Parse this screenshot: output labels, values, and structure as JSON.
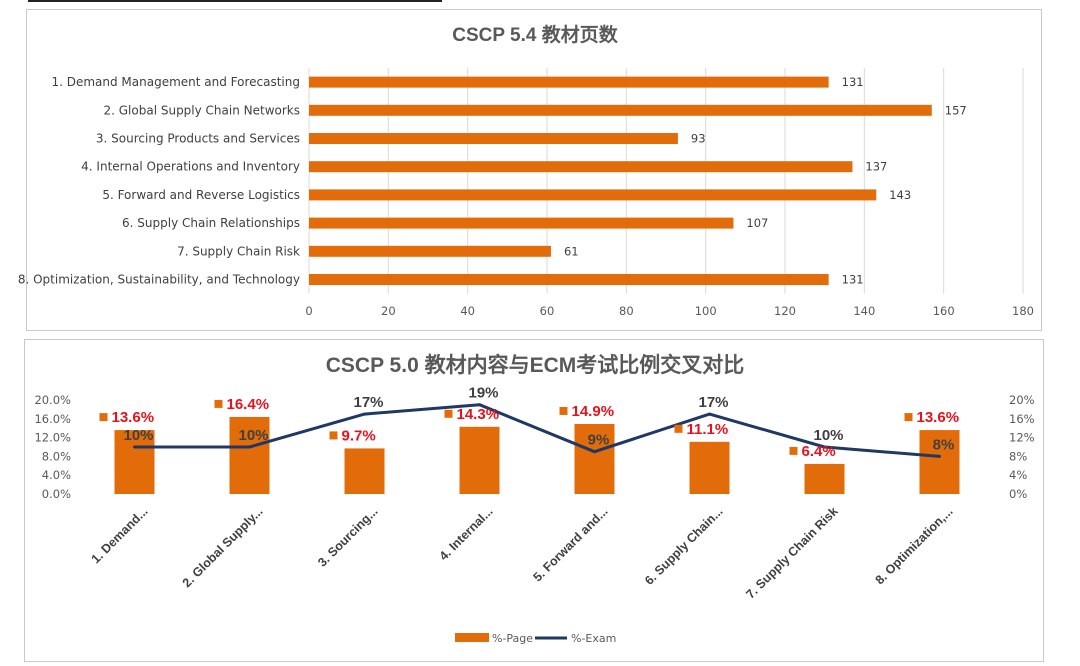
{
  "chart_data": [
    {
      "type": "bar",
      "orientation": "horizontal",
      "title": "CSCP 5.4 教材页数",
      "categories": [
        "1. Demand Management and Forecasting",
        "2. Global Supply Chain Networks",
        "3. Sourcing Products and Services",
        "4. Internal Operations and Inventory",
        "5. Forward and Reverse Logistics",
        "6. Supply Chain Relationships",
        "7. Supply Chain Risk",
        "8. Optimization, Sustainability, and Technology"
      ],
      "values": [
        131,
        157,
        93,
        137,
        143,
        107,
        61,
        131
      ],
      "data_labels": [
        "131",
        "157",
        "93",
        "137",
        "143",
        "107",
        "61",
        "131"
      ],
      "xlim": [
        0,
        180
      ],
      "xticks": [
        "0",
        "20",
        "40",
        "60",
        "80",
        "100",
        "120",
        "140",
        "160",
        "180"
      ],
      "grid": true,
      "color": "#e36c0a"
    },
    {
      "type": "bar+line",
      "title_part1": "CSCP 5.0 教材内容与",
      "title_part2": "ECM",
      "title_part3": "考试比例交叉对比",
      "categories": [
        "1. Demand...",
        "2. Global Supply...",
        "3. Sourcing...",
        "4. Internal...",
        "5. Forward and...",
        "6. Supply Chain...",
        "7. Supply Chain Risk",
        "8. Optimization,..."
      ],
      "series": [
        {
          "name": "%-Page",
          "type": "bar",
          "axis": "left",
          "color": "#e36c0a",
          "values": [
            13.6,
            16.4,
            9.7,
            14.3,
            14.9,
            11.1,
            6.4,
            13.6
          ],
          "labels": [
            "13.6%",
            "16.4%",
            "9.7%",
            "14.3%",
            "14.9%",
            "11.1%",
            "6.4%",
            "13.6%"
          ]
        },
        {
          "name": "%-Exam",
          "type": "line",
          "axis": "right",
          "color": "#1f3864",
          "values": [
            10,
            10,
            17,
            19,
            9,
            17,
            10,
            8
          ],
          "labels": [
            "10%",
            "10%",
            "17%",
            "19%",
            "9%",
            "17%",
            "10%",
            "8%"
          ]
        }
      ],
      "left_axis": {
        "range": [
          0,
          20
        ],
        "ticks": [
          "0.0%",
          "4.0%",
          "8.0%",
          "12.0%",
          "16.0%",
          "20.0%"
        ]
      },
      "right_axis": {
        "range": [
          0,
          20
        ],
        "ticks": [
          "0%",
          "4%",
          "8%",
          "12%",
          "16%",
          "20%"
        ]
      },
      "legend": {
        "placement": "bottom",
        "items": [
          "%-Page",
          "%-Exam"
        ]
      }
    }
  ]
}
